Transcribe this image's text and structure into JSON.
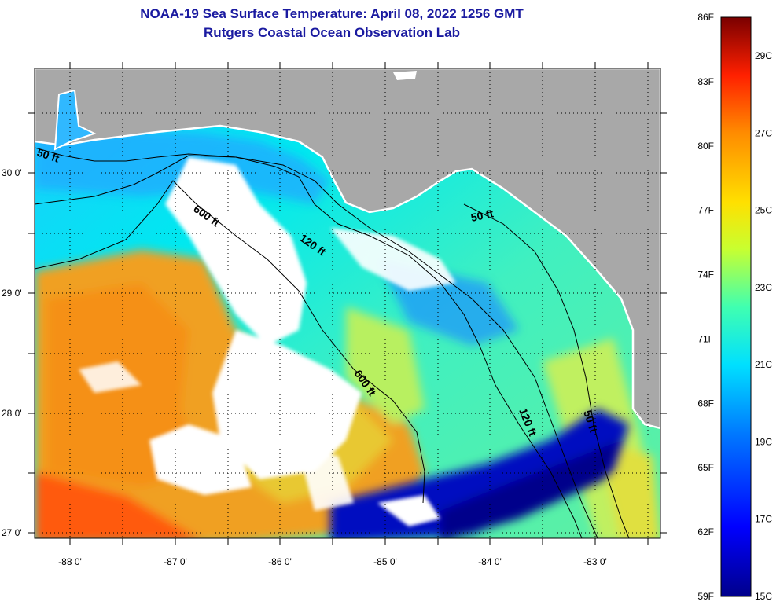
{
  "header": {
    "title_line1": "NOAA-19 Sea Surface Temperature:  April 08, 2022 1256 GMT",
    "title_line2": "Rutgers Coastal Ocean Observation Lab"
  },
  "map": {
    "region": "Northeastern Gulf of Mexico / Florida Big Bend",
    "lat_labels": [
      "30 0'",
      "29 0'",
      "28 0'",
      "27 0'"
    ],
    "lon_labels": [
      "-88 0'",
      "-87 0'",
      "-86 0'",
      "-85 0'",
      "-84 0'",
      "-83 0'"
    ],
    "contour_labels": [
      {
        "text": "50 ft",
        "depth_ft": 50
      },
      {
        "text": "600 ft",
        "depth_ft": 600
      },
      {
        "text": "120 ft",
        "depth_ft": 120
      },
      {
        "text": "50 ft",
        "depth_ft": 50
      },
      {
        "text": "600 ft",
        "depth_ft": 600
      },
      {
        "text": "120 ft",
        "depth_ft": 120
      },
      {
        "text": "50 ft",
        "depth_ft": 50
      }
    ],
    "colors": {
      "land": "#a8a8a8",
      "cloud": "#ffffff",
      "cold": "#00008b",
      "warm": "#ff8c00"
    }
  },
  "colorbar": {
    "fahrenheit_labels": [
      "86F",
      "83F",
      "80F",
      "77F",
      "74F",
      "71F",
      "68F",
      "65F",
      "62F",
      "59F"
    ],
    "celsius_labels": [
      "29C",
      "27C",
      "25C",
      "23C",
      "21C",
      "19C",
      "17C",
      "15C"
    ],
    "range_f": [
      59,
      86
    ],
    "range_c": [
      15,
      30
    ]
  }
}
